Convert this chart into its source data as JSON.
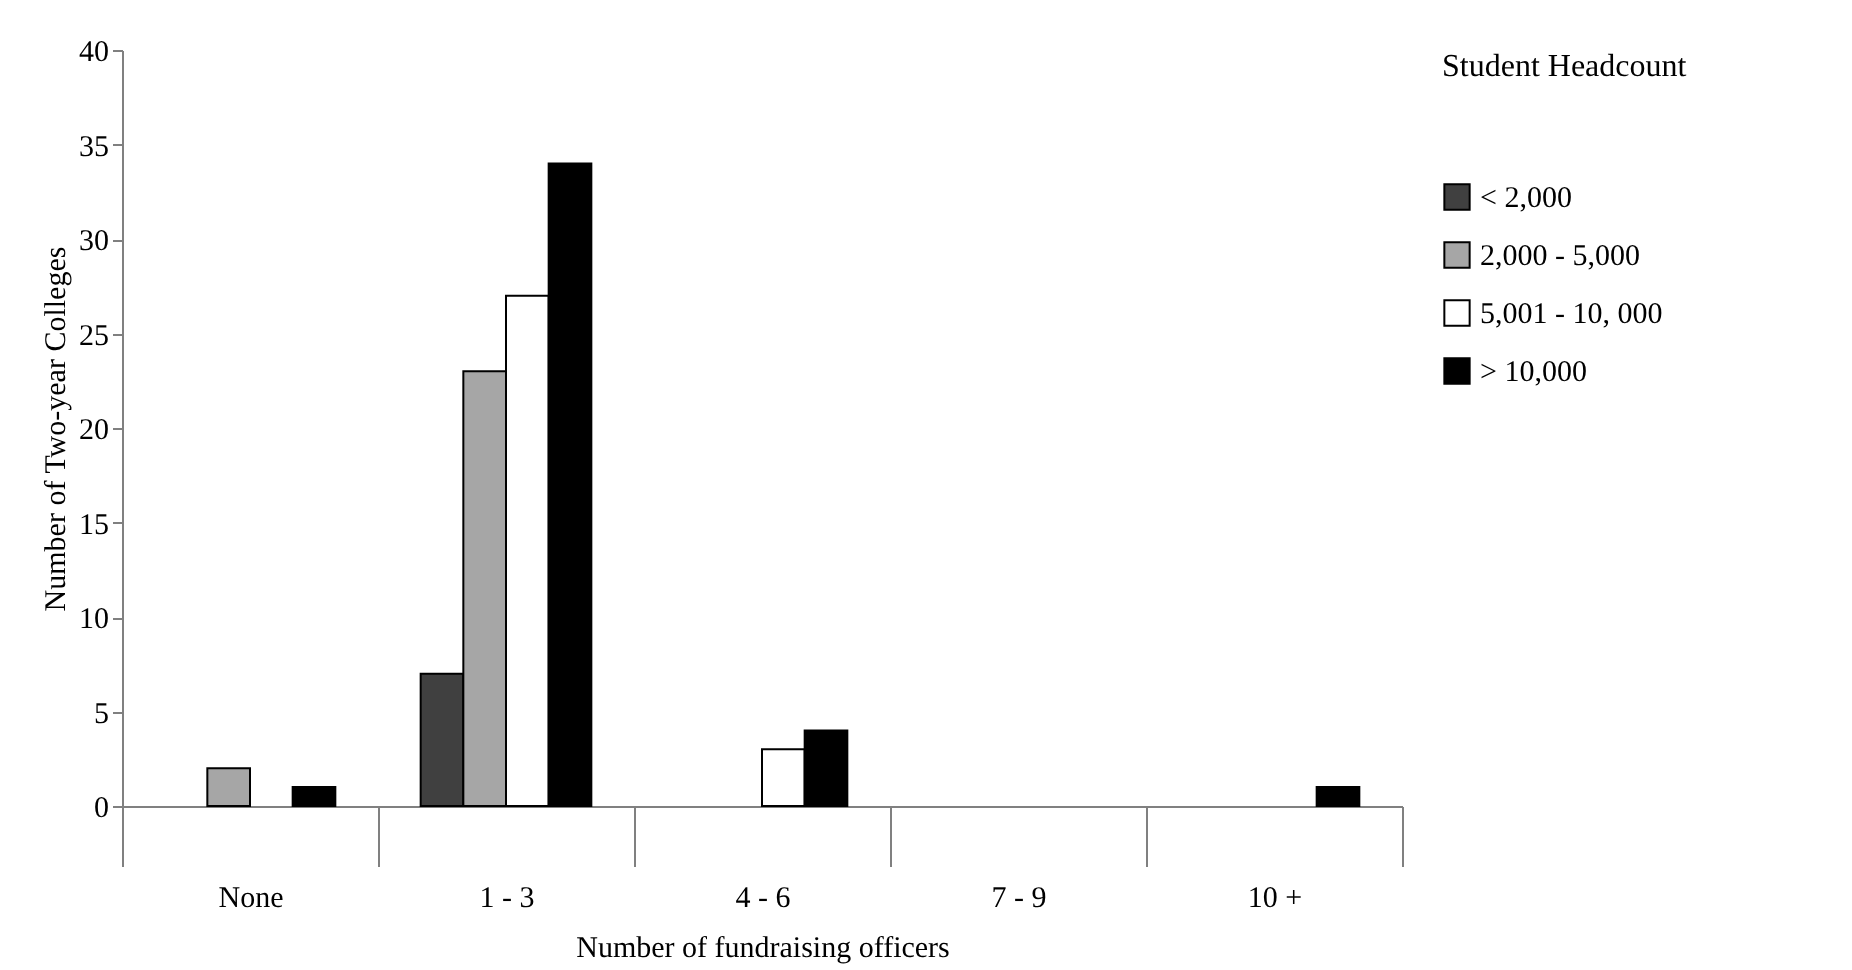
{
  "chart_data": {
    "type": "bar",
    "xlabel": "Number of  fundraising officers",
    "ylabel": "Number of Two-year Colleges",
    "legend_title": "Student Headcount",
    "categories": [
      "None",
      "1 - 3",
      "4 - 6",
      "7 - 9",
      "10 +"
    ],
    "series": [
      {
        "name": "< 2,000",
        "color": "#404040",
        "values": [
          0,
          7,
          0,
          0,
          0
        ]
      },
      {
        "name": "2,000 - 5,000",
        "color": "#a6a6a6",
        "values": [
          2,
          23,
          0,
          0,
          0
        ]
      },
      {
        "name": "5,001 - 10, 000",
        "color": "#ffffff",
        "values": [
          0,
          27,
          3,
          0,
          0
        ]
      },
      {
        "name": "> 10,000",
        "color": "#000000",
        "values": [
          1,
          34,
          4,
          0,
          1
        ]
      }
    ],
    "ylim": [
      0,
      40
    ],
    "yticks": [
      0,
      5,
      10,
      15,
      20,
      25,
      30,
      35,
      40
    ],
    "grid": false,
    "legend": "right"
  }
}
